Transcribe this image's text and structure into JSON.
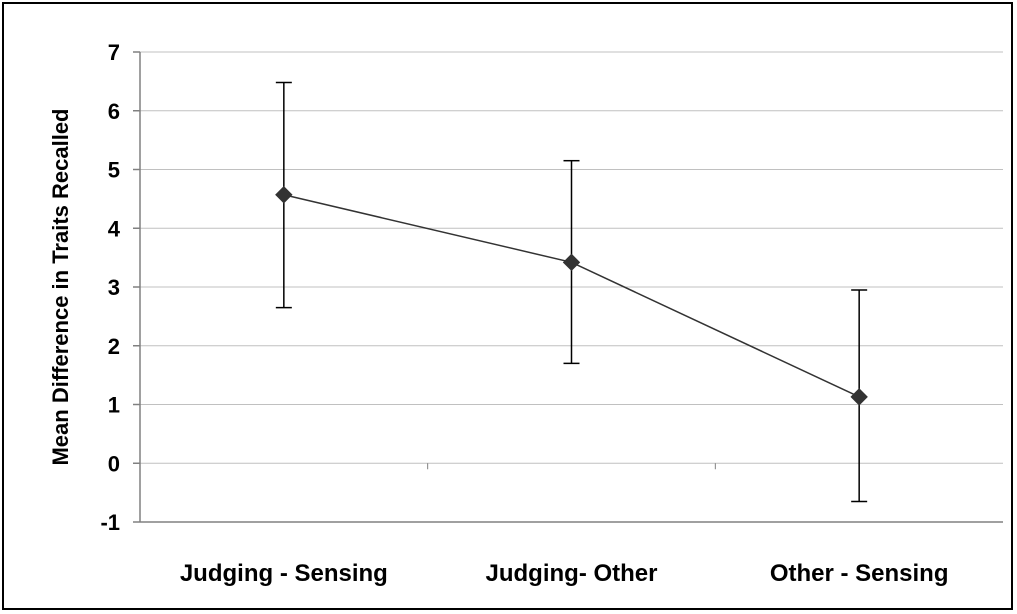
{
  "chart_data": {
    "type": "line",
    "title": "",
    "xlabel": "",
    "ylabel": "Mean Difference in Traits Recalled",
    "categories": [
      "Judging - Sensing",
      "Judging- Other",
      "Other - Sensing"
    ],
    "series": [
      {
        "values": [
          4.57,
          3.42,
          1.13
        ],
        "error_low": [
          2.65,
          1.7,
          -0.65
        ],
        "error_high": [
          6.48,
          5.15,
          2.95
        ],
        "color": "#333333"
      }
    ],
    "ylim": [
      -1,
      7
    ],
    "yticks": [
      "-1",
      "0",
      "1",
      "2",
      "3",
      "4",
      "5",
      "6",
      "7"
    ],
    "grid": true,
    "grid_color": "#c0c0c0",
    "marker": "diamond",
    "legend": "none"
  }
}
